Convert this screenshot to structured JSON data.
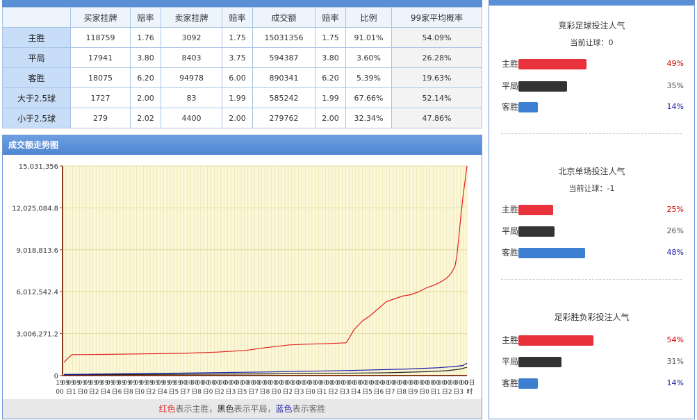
{
  "table": {
    "headers": [
      "",
      "买家挂牌",
      "赔率",
      "卖家挂牌",
      "赔率",
      "成交额",
      "赔率",
      "比例",
      "99家平均概率"
    ],
    "rows": [
      {
        "label": "主胜",
        "cells": [
          "118759",
          "1.76",
          "3092",
          "1.75",
          "15031356",
          "1.75",
          "91.01%",
          "54.09%"
        ]
      },
      {
        "label": "平局",
        "cells": [
          "17941",
          "3.80",
          "8403",
          "3.75",
          "594387",
          "3.80",
          "3.60%",
          "26.28%"
        ]
      },
      {
        "label": "客胜",
        "cells": [
          "18075",
          "6.20",
          "94978",
          "6.00",
          "890341",
          "6.20",
          "5.39%",
          "19.63%"
        ]
      },
      {
        "label": "大于2.5球",
        "cells": [
          "1727",
          "2.00",
          "83",
          "1.99",
          "585242",
          "1.99",
          "67.66%",
          "52.14%"
        ]
      },
      {
        "label": "小于2.5球",
        "cells": [
          "279",
          "2.02",
          "4400",
          "2.00",
          "279762",
          "2.00",
          "32.34%",
          "47.86%"
        ]
      }
    ]
  },
  "chart_title": "成交额走势图",
  "legend": {
    "red": "红色",
    "red_text": "表示主胜，",
    "black": "黑色",
    "black_text": "表示平局，",
    "blue": "蓝色",
    "blue_text": "表示客胜"
  },
  "chart_data": {
    "type": "line",
    "title": "成交额走势图",
    "ylim": [
      0,
      15031356
    ],
    "yticks": [
      "0",
      "3,006,271.2",
      "6,012,542.4",
      "9,018,813.6",
      "12,025,084.8",
      "15,031,356"
    ],
    "xtick_top": [
      "19",
      "09",
      "09",
      "09",
      "09",
      "09",
      "09",
      "09",
      "09",
      "09",
      "09",
      "09",
      "09",
      "09",
      "09",
      "09",
      "09",
      "09",
      "09",
      "09",
      "09",
      "09",
      "00",
      "00",
      "00",
      "00",
      "00",
      "00",
      "00",
      "00",
      "00",
      "00",
      "00",
      "00",
      "00",
      "00",
      "00",
      "00",
      "00",
      "00",
      "00",
      "00",
      "00",
      "00",
      "00",
      "00",
      "00",
      "00",
      "00",
      "00",
      "00",
      "00",
      "00",
      "00",
      "00",
      "00",
      "00",
      "00",
      "00",
      "00",
      "00",
      "00",
      "00",
      "00",
      "00",
      "00",
      "00",
      "00",
      "00",
      "00",
      "00",
      "00",
      "00",
      "0日"
    ],
    "xtick_bottom": [
      "00",
      "日1",
      "日0",
      "日2",
      "日4",
      "日6",
      "日8",
      "日0",
      "日2",
      "日4",
      "日5",
      "日7",
      "日8",
      "日0",
      "日2",
      "日3",
      "日5",
      "日7",
      "日8",
      "日0",
      "日2",
      "日3",
      "日0",
      "日1",
      "日2",
      "日3",
      "日4",
      "日5",
      "日6",
      "日7",
      "日8",
      "日9",
      "日0",
      "日1",
      "日2",
      "日3",
      "时"
    ],
    "series": [
      {
        "name": "主胜",
        "color": "#e02020",
        "x": [
          0,
          0.01,
          0.02,
          0.1,
          0.2,
          0.3,
          0.38,
          0.45,
          0.5,
          0.56,
          0.6,
          0.66,
          0.7,
          0.71,
          0.72,
          0.74,
          0.76,
          0.78,
          0.8,
          0.82,
          0.84,
          0.86,
          0.88,
          0.9,
          0.92,
          0.94,
          0.95,
          0.96,
          0.97,
          0.975,
          0.98,
          0.985,
          0.99,
          1.0
        ],
        "y": [
          950000,
          1250000,
          1500000,
          1520000,
          1560000,
          1600000,
          1680000,
          1800000,
          2000000,
          2200000,
          2250000,
          2300000,
          2350000,
          2800000,
          3300000,
          3900000,
          4300000,
          4800000,
          5300000,
          5500000,
          5700000,
          5800000,
          6000000,
          6300000,
          6500000,
          6800000,
          7000000,
          7300000,
          7800000,
          8600000,
          10000000,
          11500000,
          12800000,
          15031356
        ]
      },
      {
        "name": "平局",
        "color": "#222222",
        "x": [
          0,
          0.5,
          0.8,
          0.9,
          0.95,
          0.98,
          1.0
        ],
        "y": [
          60000,
          120000,
          200000,
          280000,
          350000,
          450000,
          594387
        ]
      },
      {
        "name": "客胜",
        "color": "#1a1aa8",
        "x": [
          0,
          0.3,
          0.5,
          0.7,
          0.85,
          0.93,
          0.97,
          0.99,
          1.0
        ],
        "y": [
          80000,
          180000,
          260000,
          360000,
          470000,
          560000,
          650000,
          720000,
          890341
        ]
      }
    ]
  },
  "panels": [
    {
      "title": "竞彩足球投注人气",
      "sub": "当前让球：0",
      "rows": [
        {
          "label": "主胜",
          "value": 49,
          "pct": "49%",
          "color": "#e8323c",
          "pct_color": "#cc0000"
        },
        {
          "label": "平局",
          "value": 35,
          "pct": "35%",
          "color": "#333333",
          "pct_color": "#555555"
        },
        {
          "label": "客胜",
          "value": 14,
          "pct": "14%",
          "color": "#3d7fd1",
          "pct_color": "#1a1aa8"
        }
      ]
    },
    {
      "title": "北京单场投注人气",
      "sub": "当前让球：-1",
      "rows": [
        {
          "label": "主胜",
          "value": 25,
          "pct": "25%",
          "color": "#e8323c",
          "pct_color": "#cc0000"
        },
        {
          "label": "平局",
          "value": 26,
          "pct": "26%",
          "color": "#333333",
          "pct_color": "#555555"
        },
        {
          "label": "客胜",
          "value": 48,
          "pct": "48%",
          "color": "#3d7fd1",
          "pct_color": "#1a1aa8"
        }
      ]
    },
    {
      "title": "足彩胜负彩投注人气",
      "sub": "",
      "rows": [
        {
          "label": "主胜",
          "value": 54,
          "pct": "54%",
          "color": "#e8323c",
          "pct_color": "#cc0000"
        },
        {
          "label": "平局",
          "value": 31,
          "pct": "31%",
          "color": "#333333",
          "pct_color": "#555555"
        },
        {
          "label": "客胜",
          "value": 14,
          "pct": "14%",
          "color": "#3d7fd1",
          "pct_color": "#1a1aa8"
        }
      ]
    }
  ]
}
